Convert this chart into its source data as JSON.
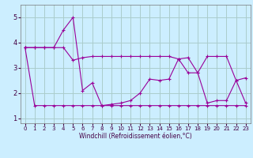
{
  "xlabel": "Windchill (Refroidissement éolien,°C)",
  "background_color": "#cceeff",
  "grid_color": "#aacccc",
  "line_color": "#990099",
  "xlim": [
    -0.5,
    23.5
  ],
  "ylim": [
    0.8,
    5.5
  ],
  "xticks": [
    0,
    1,
    2,
    3,
    4,
    5,
    6,
    7,
    8,
    9,
    10,
    11,
    12,
    13,
    14,
    15,
    16,
    17,
    18,
    19,
    20,
    21,
    22,
    23
  ],
  "yticks": [
    1,
    2,
    3,
    4,
    5
  ],
  "series1_x": [
    0,
    1,
    2,
    3,
    4,
    5,
    6,
    7,
    8,
    9,
    10,
    11,
    12,
    13,
    14,
    15,
    16,
    17,
    18,
    19,
    20,
    21,
    22,
    23
  ],
  "series1_y": [
    3.8,
    1.5,
    1.5,
    1.5,
    1.5,
    1.5,
    1.5,
    1.5,
    1.5,
    1.5,
    1.5,
    1.5,
    1.5,
    1.5,
    1.5,
    1.5,
    1.5,
    1.5,
    1.5,
    1.5,
    1.5,
    1.5,
    1.5,
    1.5
  ],
  "series2_x": [
    0,
    1,
    2,
    3,
    4,
    5,
    6,
    7,
    8,
    9,
    10,
    11,
    12,
    13,
    14,
    15,
    16,
    17,
    18,
    19,
    20,
    21,
    22,
    23
  ],
  "series2_y": [
    3.8,
    3.8,
    3.8,
    3.8,
    4.5,
    5.0,
    2.1,
    2.4,
    1.5,
    1.55,
    1.6,
    1.7,
    2.0,
    2.55,
    2.5,
    2.55,
    3.35,
    3.4,
    2.8,
    1.6,
    1.7,
    1.7,
    2.5,
    2.6
  ],
  "series3_x": [
    0,
    1,
    2,
    3,
    4,
    5,
    6,
    7,
    8,
    9,
    10,
    11,
    12,
    13,
    14,
    15,
    16,
    17,
    18,
    19,
    20,
    21,
    22,
    23
  ],
  "series3_y": [
    3.8,
    3.8,
    3.8,
    3.8,
    3.8,
    3.3,
    3.4,
    3.45,
    3.45,
    3.45,
    3.45,
    3.45,
    3.45,
    3.45,
    3.45,
    3.45,
    3.35,
    2.8,
    2.8,
    3.45,
    3.45,
    3.45,
    2.5,
    1.6
  ]
}
